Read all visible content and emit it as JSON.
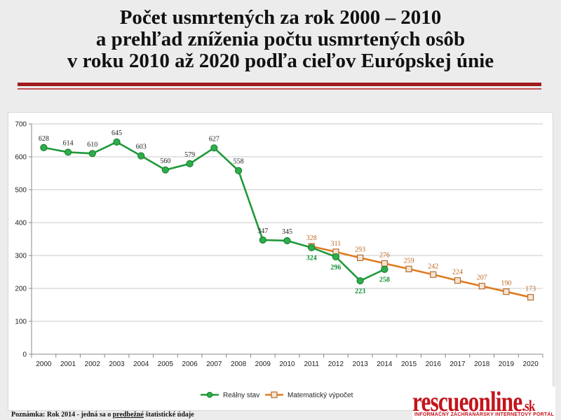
{
  "title_lines": [
    "Počet usmrtených za rok 2000 – 2010",
    "a prehľad zníženia počtu usmrtených osôb",
    "v roku 2010 až 2020 podľa cieľov Európskej únie"
  ],
  "footnote": {
    "prefix": "Poznámka: Rok 2014 - jedná sa o ",
    "underlined": "predbežné",
    "suffix": " štatistické údaje"
  },
  "logo": {
    "word": "rescueonline",
    "suffix": ".sk",
    "tagline": "INFORMAČNÝ ZÁCHRANÁRSKY INTERNETOVÝ PORTÁL"
  },
  "chart_data": {
    "type": "line",
    "title": "",
    "xlabel": "",
    "ylabel": "",
    "x": [
      "2000",
      "2001",
      "2002",
      "2003",
      "2004",
      "2005",
      "2006",
      "2007",
      "2008",
      "2009",
      "2010",
      "2011",
      "2012",
      "2013",
      "2014",
      "2015",
      "2016",
      "2017",
      "2018",
      "2019",
      "2020"
    ],
    "ylim": [
      0,
      700
    ],
    "yticks": [
      0,
      100,
      200,
      300,
      400,
      500,
      600,
      700
    ],
    "grid": true,
    "legend_position": "bottom",
    "series": [
      {
        "name": "Reálny stav",
        "color": "#1f9a3a",
        "marker": "circle",
        "x": [
          "2000",
          "2001",
          "2002",
          "2003",
          "2004",
          "2005",
          "2006",
          "2007",
          "2008",
          "2009",
          "2010",
          "2011",
          "2012",
          "2013",
          "2014"
        ],
        "values": [
          628,
          614,
          610,
          645,
          603,
          560,
          579,
          627,
          558,
          347,
          345,
          324,
          296,
          223,
          258
        ],
        "labels": [
          "628",
          "614",
          "610",
          "645",
          "603",
          "560",
          "579",
          "627",
          "558",
          "347",
          "345",
          "324",
          "296",
          "223",
          "258"
        ]
      },
      {
        "name": "Matematický výpočet",
        "color": "#e07b1f",
        "marker": "square",
        "x": [
          "2011",
          "2012",
          "2013",
          "2014",
          "2015",
          "2016",
          "2017",
          "2018",
          "2019",
          "2020"
        ],
        "values": [
          328,
          311,
          293,
          276,
          259,
          242,
          224,
          207,
          190,
          173
        ],
        "labels": [
          "328",
          "311",
          "293",
          "276",
          "259",
          "242",
          "224",
          "207",
          "190",
          "173"
        ]
      }
    ]
  }
}
